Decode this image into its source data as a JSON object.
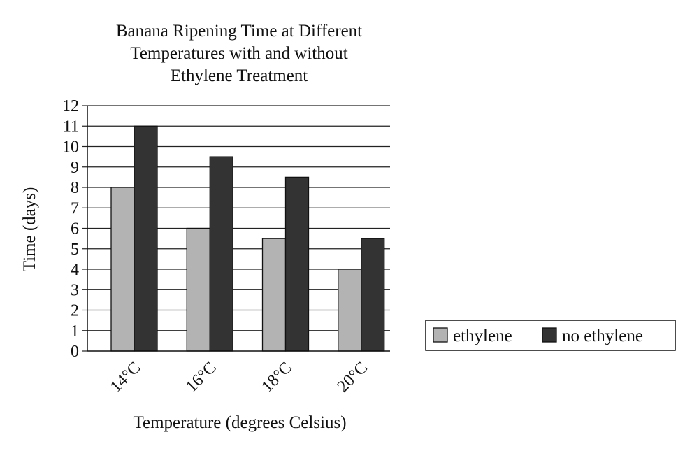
{
  "chart_data": {
    "type": "bar",
    "title": "Banana Ripening Time at Different Temperatures with and without Ethylene Treatment",
    "title_lines": [
      "Banana Ripening Time at Different",
      "Temperatures with and without",
      "Ethylene Treatment"
    ],
    "xlabel": "Temperature (degrees Celsius)",
    "ylabel": "Time (days)",
    "categories": [
      "14°C",
      "16°C",
      "18°C",
      "20°C"
    ],
    "ylim": [
      0,
      12
    ],
    "yticks": [
      0,
      1,
      2,
      3,
      4,
      5,
      6,
      7,
      8,
      9,
      10,
      11,
      12
    ],
    "grid": true,
    "legend_position": "right",
    "series": [
      {
        "name": "ethylene",
        "values": [
          8,
          6,
          5.5,
          4
        ],
        "color": "#b3b3b3"
      },
      {
        "name": "no ethylene",
        "values": [
          11,
          9.5,
          8.5,
          5.5
        ],
        "color": "#333333"
      }
    ]
  }
}
